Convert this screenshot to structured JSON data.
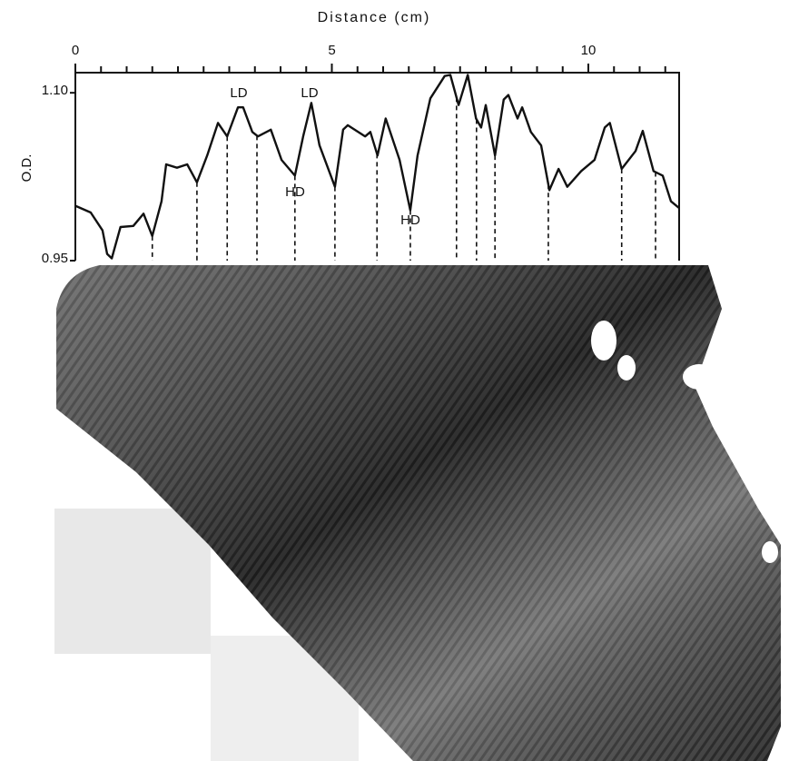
{
  "chart_data": {
    "type": "line",
    "title": "Distance (cm)",
    "y_label": "O.D.",
    "color": "#111111",
    "xlim": [
      0,
      11.77
    ],
    "xticks": [
      0,
      5,
      10
    ],
    "xticks_minor": [
      0.5,
      1,
      1.5,
      2,
      2.5,
      3,
      3.5,
      4,
      4.5,
      5.5,
      6,
      6.5,
      7,
      7.5,
      8,
      8.5,
      9,
      9.5,
      10.5,
      11,
      11.5
    ],
    "ylim": [
      0.95,
      1.118
    ],
    "yticks": [
      0.95,
      {
        "value": 1.1,
        "label": "1.10"
      }
    ],
    "x": [
      0,
      0.3,
      0.53,
      0.62,
      0.71,
      0.88,
      1.13,
      1.33,
      1.5,
      1.68,
      1.77,
      1.98,
      2.18,
      2.37,
      2.57,
      2.78,
      2.96,
      3.17,
      3.27,
      3.45,
      3.56,
      3.81,
      4.02,
      4.28,
      4.44,
      4.6,
      4.76,
      5.06,
      5.22,
      5.31,
      5.65,
      5.75,
      5.89,
      6.05,
      6.32,
      6.53,
      6.67,
      6.92,
      7.2,
      7.31,
      7.47,
      7.65,
      7.81,
      7.91,
      8.0,
      8.18,
      8.35,
      8.44,
      8.62,
      8.71,
      8.88,
      9.08,
      9.24,
      9.42,
      9.59,
      9.86,
      10.12,
      10.32,
      10.42,
      10.65,
      10.92,
      11.06,
      11.27,
      11.45,
      11.61,
      11.77
    ],
    "values": [
      0.999,
      0.993,
      0.977,
      0.956,
      0.952,
      0.98,
      0.981,
      0.992,
      0.972,
      1.003,
      1.036,
      1.033,
      1.036,
      1.02,
      1.044,
      1.073,
      1.061,
      1.087,
      1.087,
      1.065,
      1.061,
      1.067,
      1.04,
      1.026,
      1.061,
      1.091,
      1.053,
      1.016,
      1.067,
      1.071,
      1.061,
      1.065,
      1.044,
      1.077,
      1.04,
      0.995,
      1.044,
      1.095,
      1.115,
      1.116,
      1.089,
      1.116,
      1.077,
      1.069,
      1.089,
      1.044,
      1.094,
      1.098,
      1.077,
      1.087,
      1.065,
      1.053,
      1.013,
      1.032,
      1.016,
      1.03,
      1.04,
      1.069,
      1.073,
      1.032,
      1.048,
      1.066,
      1.03,
      1.026,
      1.003,
      0.997
    ],
    "band_markers": [
      1.5,
      2.37,
      2.96,
      3.54,
      4.28,
      5.06,
      5.88,
      6.53,
      7.43,
      7.82,
      8.18,
      9.22,
      10.65,
      11.31
    ],
    "annotations": [
      "LD",
      "LD",
      "HD",
      "HD"
    ]
  }
}
